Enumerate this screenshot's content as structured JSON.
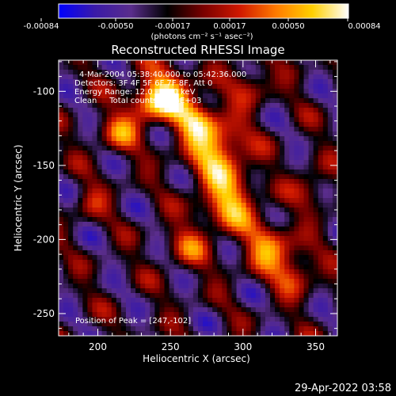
{
  "colorbar": {
    "ticks": [
      "-0.00084",
      "-0.00050",
      "-0.00017",
      "0.00017",
      "0.00050",
      "0.00084"
    ],
    "unit_label": "(photons cm⁻² s⁻¹ asec⁻²)",
    "colors": [
      "#0000ff",
      "#3a1aa8",
      "#5a2d8c",
      "#000000",
      "#7a0000",
      "#d01800",
      "#ff7a00",
      "#ffd000",
      "#ffffff"
    ]
  },
  "chart_data": {
    "type": "heatmap",
    "title": "Reconstructed RHESSI Image",
    "xlabel": "Heliocentric X (arcsec)",
    "ylabel": "Heliocentric Y (arcsec)",
    "xlim": [
      173,
      365
    ],
    "ylim": [
      -265,
      -79
    ],
    "xticks": [
      200,
      250,
      300,
      350
    ],
    "yticks": [
      -100,
      -150,
      -200,
      -250
    ],
    "zlim": [
      -0.00084,
      0.00084
    ],
    "annotations": [
      "4-Mar-2004 05:38:40.000 to 05:42:36.000",
      "Detectors: 3F 4F 5F 6F 7F 8F, Att 0",
      "Energy Range: 12.0 - 25.0 keV",
      "Clean     Total counts: 2.35E+03"
    ],
    "peak_label": "Position of Peak = [247,-102]",
    "peak": [
      247,
      -102
    ]
  },
  "footer": {
    "timestamp": "29-Apr-2022 03:58"
  }
}
